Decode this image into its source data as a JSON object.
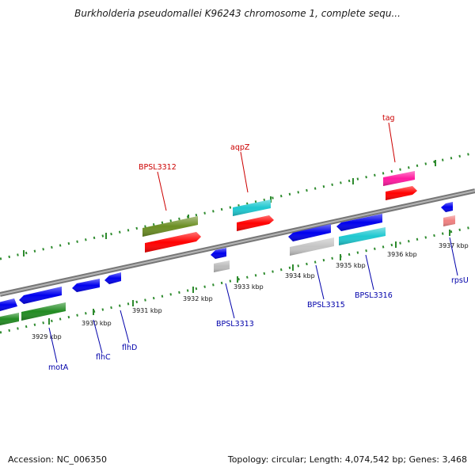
{
  "title": "Burkholderia pseudomallei K96243 chromosome 1, complete sequ...",
  "footer": {
    "accession": "Accession: NC_006350",
    "stats": "Topology: circular; Length: 4,074,542 bp; Genes: 3,468"
  },
  "colors": {
    "label_forward": "#cc0000",
    "label_reverse": "#0000aa",
    "backbone": "#8a8a8a",
    "tick_dots": "#2e8b2e"
  },
  "ticks": [
    {
      "label": "3929 kbp"
    },
    {
      "label": "3930 kbp"
    },
    {
      "label": "3931 kbp"
    },
    {
      "label": "3932 kbp"
    },
    {
      "label": "3933 kbp"
    },
    {
      "label": "3934 kbp"
    },
    {
      "label": "3935 kbp"
    },
    {
      "label": "3936 kbp"
    },
    {
      "label": "3937 kbp"
    }
  ],
  "labels": [
    {
      "text": "BPSL3312",
      "strand": "forward"
    },
    {
      "text": "aqpZ",
      "strand": "forward"
    },
    {
      "text": "tag",
      "strand": "forward"
    },
    {
      "text": "motA",
      "strand": "reverse"
    },
    {
      "text": "flhC",
      "strand": "reverse"
    },
    {
      "text": "flhD",
      "strand": "reverse"
    },
    {
      "text": "BPSL3313",
      "strand": "reverse"
    },
    {
      "text": "BPSL3315",
      "strand": "reverse"
    },
    {
      "text": "BPSL3316",
      "strand": "reverse"
    },
    {
      "text": "rpsU",
      "strand": "reverse"
    }
  ]
}
